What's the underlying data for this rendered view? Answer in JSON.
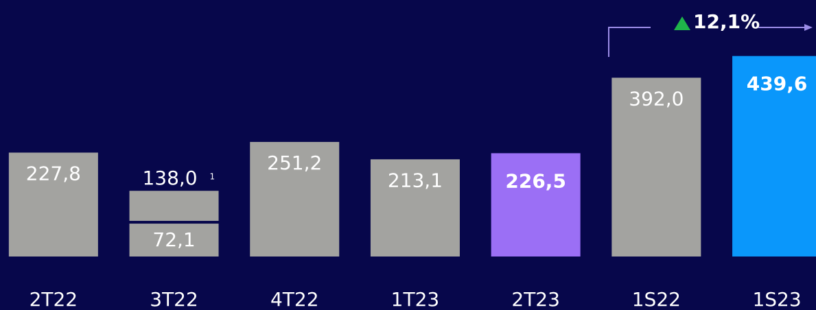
{
  "chart_data": {
    "type": "bar",
    "categories": [
      "2T22",
      "3T22",
      "4T22",
      "1T23",
      "2T23",
      "1S22",
      "1S23"
    ],
    "series": [
      {
        "values": [
          227.8,
          72.1,
          251.2,
          213.1,
          226.5,
          392.0,
          439.6
        ],
        "value_labels": [
          "227,8",
          "72,1",
          "251,2",
          "213,1",
          "226,5",
          "392,0",
          "439,6"
        ],
        "colors": [
          "#a3a3a0",
          "#a3a3a0",
          "#a3a3a0",
          "#a3a3a0",
          "#9b6ff5",
          "#a3a3a0",
          "#0a97fb"
        ]
      },
      {
        "values": [
          null,
          65.9,
          null,
          null,
          null,
          null,
          null
        ],
        "color": "#a3a3a0"
      }
    ],
    "total_values": [
      null,
      138.0,
      null,
      null,
      null,
      null,
      null
    ],
    "total_labels": [
      null,
      "138,0",
      null,
      null,
      null,
      null,
      null
    ],
    "footnote": "1",
    "annotation": "12,1%",
    "ylim": [
      0,
      450
    ]
  }
}
